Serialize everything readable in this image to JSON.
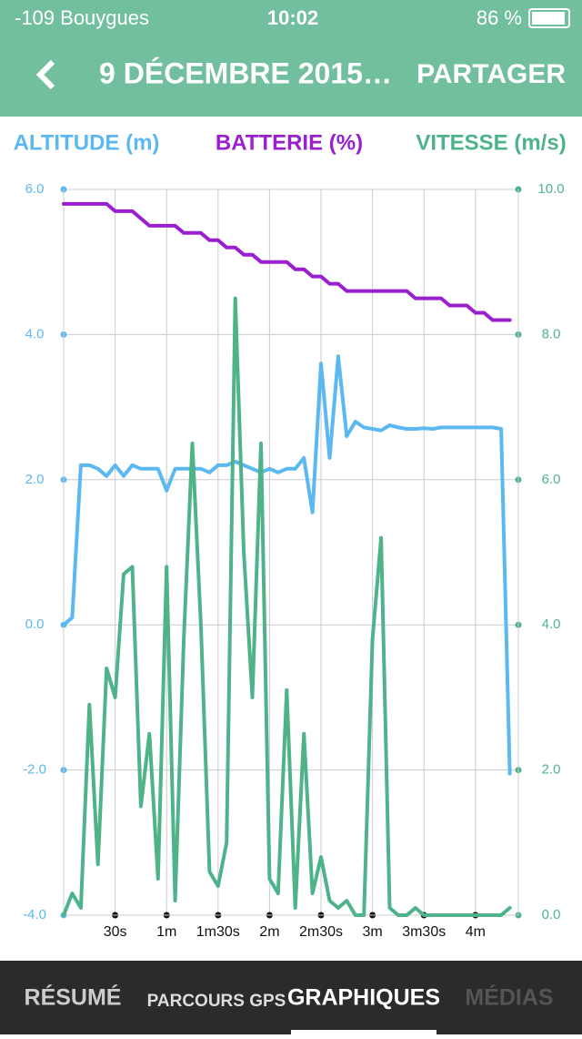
{
  "status_bar": {
    "carrier": "-109 Bouygues",
    "time": "10:02",
    "battery": "86 %"
  },
  "nav": {
    "title": "9 DÉCEMBRE 2015…",
    "action": "PARTAGER"
  },
  "tabs": [
    "RÉSUMÉ",
    "PARCOURS GPS",
    "GRAPHIQUES",
    "MÉDIAS"
  ],
  "chart_data": {
    "type": "line",
    "x": [
      0,
      5,
      10,
      15,
      20,
      25,
      30,
      35,
      40,
      45,
      50,
      55,
      60,
      65,
      70,
      75,
      80,
      85,
      90,
      95,
      100,
      105,
      110,
      115,
      120,
      125,
      130,
      135,
      140,
      145,
      150,
      155,
      160,
      165,
      170,
      175,
      180,
      185,
      190,
      195,
      200,
      205,
      210,
      215,
      220,
      225,
      230,
      235,
      240,
      245,
      250,
      255,
      260
    ],
    "xlim": [
      0,
      265
    ],
    "xticks": [
      {
        "value": 30,
        "label": "30s"
      },
      {
        "value": 60,
        "label": "1m"
      },
      {
        "value": 90,
        "label": "1m30s"
      },
      {
        "value": 120,
        "label": "2m"
      },
      {
        "value": 150,
        "label": "2m30s"
      },
      {
        "value": 180,
        "label": "3m"
      },
      {
        "value": 210,
        "label": "3m30s"
      },
      {
        "value": 240,
        "label": "4m"
      }
    ],
    "ylim": [
      -4,
      6
    ],
    "yticks": [
      {
        "value": -4,
        "label": "-4.0"
      },
      {
        "value": -2,
        "label": "-2.0"
      },
      {
        "value": 0,
        "label": "0.0"
      },
      {
        "value": 2,
        "label": "2.0"
      },
      {
        "value": 4,
        "label": "4.0"
      },
      {
        "value": 6,
        "label": "6.0"
      }
    ],
    "y2lim": [
      0,
      10
    ],
    "y2ticks": [
      {
        "value": 0,
        "label": "0.0"
      },
      {
        "value": 2,
        "label": "2.0"
      },
      {
        "value": 4,
        "label": "4.0"
      },
      {
        "value": 6,
        "label": "6.0"
      },
      {
        "value": 8,
        "label": "8.0"
      },
      {
        "value": 10,
        "label": "10.0"
      }
    ],
    "y3lim": [
      2,
      102
    ],
    "grid": true,
    "series": [
      {
        "name": "ALTITUDE (m)",
        "color": "#5bb8f0",
        "axis": "y",
        "values": [
          0.0,
          0.1,
          2.2,
          2.2,
          2.15,
          2.05,
          2.2,
          2.05,
          2.2,
          2.15,
          2.15,
          2.15,
          1.85,
          2.15,
          2.15,
          2.15,
          2.15,
          2.1,
          2.2,
          2.2,
          2.25,
          2.2,
          2.15,
          2.1,
          2.15,
          2.1,
          2.15,
          2.15,
          2.3,
          1.55,
          3.6,
          2.3,
          3.7,
          2.6,
          2.8,
          2.72,
          2.7,
          2.68,
          2.75,
          2.72,
          2.7,
          2.7,
          2.71,
          2.7,
          2.72,
          2.72,
          2.72,
          2.72,
          2.72,
          2.72,
          2.72,
          2.7,
          -2.05
        ]
      },
      {
        "name": "BATTERIE (%)",
        "color": "#9a1fcf",
        "axis": "y3",
        "values": [
          100,
          100,
          100,
          100,
          100,
          100,
          99,
          99,
          99,
          98,
          97,
          97,
          97,
          97,
          96,
          96,
          96,
          95,
          95,
          94,
          94,
          93,
          93,
          92,
          92,
          92,
          92,
          91,
          91,
          90,
          90,
          89,
          89,
          88,
          88,
          88,
          88,
          88,
          88,
          88,
          88,
          87,
          87,
          87,
          87,
          86,
          86,
          86,
          85,
          85,
          84,
          84,
          84
        ]
      },
      {
        "name": "VITESSE (m/s)",
        "color": "#4fb38a",
        "axis": "y2",
        "values": [
          0.0,
          0.3,
          0.1,
          2.9,
          0.7,
          3.4,
          3.0,
          4.7,
          4.8,
          1.5,
          2.5,
          0.5,
          4.8,
          0.2,
          3.8,
          6.5,
          4.0,
          0.6,
          0.4,
          1.0,
          8.5,
          5.0,
          3.0,
          6.5,
          0.5,
          0.3,
          3.1,
          0.1,
          2.5,
          0.3,
          0.8,
          0.2,
          0.1,
          0.2,
          0.0,
          0.0,
          3.8,
          5.2,
          0.1,
          0.0,
          0.0,
          0.1,
          0.0,
          0.0,
          0.0,
          0.0,
          0.0,
          0.0,
          0.0,
          0.0,
          0.0,
          0.0,
          0.1
        ]
      }
    ]
  }
}
